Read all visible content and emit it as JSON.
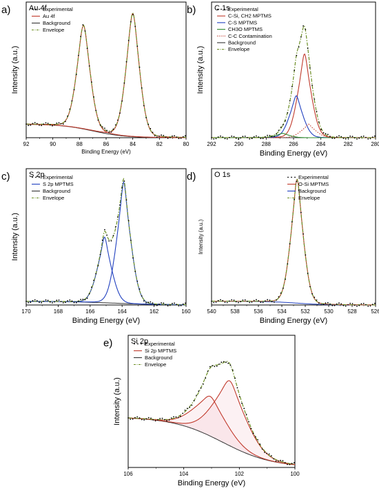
{
  "chart_data": [
    {
      "type": "line",
      "panel_label": "a)",
      "title": "Au 4f",
      "xlabel": "Binding Energy (eV)",
      "ylabel": "Intensity (a.u.)",
      "xlim": [
        92,
        80
      ],
      "xticks": [
        92,
        90,
        88,
        86,
        84,
        82,
        80
      ],
      "ylim": [
        0,
        1.1
      ],
      "legend": "top-left",
      "background": {
        "left": 0.11,
        "right": 0.0,
        "step_center": 87.0,
        "step_width": 1.2
      },
      "peaks": [
        {
          "name": "Au 4f",
          "center": 87.7,
          "sigma": 0.55,
          "gamma": 0.35,
          "amp": 0.84
        },
        {
          "name": "Au 4f",
          "center": 84.0,
          "sigma": 0.55,
          "gamma": 0.35,
          "amp": 1.0
        }
      ],
      "series": [
        {
          "name": "Experimental",
          "style": "dots",
          "color": "#000000"
        },
        {
          "name": "Au 4f",
          "style": "solid",
          "color": "#c0392b"
        },
        {
          "name": "Background",
          "style": "solid",
          "color": "#333333"
        },
        {
          "name": "Envelope",
          "style": "dashdot",
          "color": "#6b8e23"
        }
      ]
    },
    {
      "type": "line",
      "panel_label": "b)",
      "title": "C 1s",
      "xlabel": "Binding Energy (eV)",
      "ylabel": "Intensity (a.u.)",
      "xlim": [
        292,
        280
      ],
      "xticks": [
        292,
        290,
        288,
        286,
        284,
        282,
        280
      ],
      "ylim": [
        0,
        1.1
      ],
      "legend": "top-left",
      "background": {
        "left": 0.0,
        "right": 0.0,
        "step_center": 285.5,
        "step_width": 1.0
      },
      "peaks": [
        {
          "name": "C-Si, CH2 MPTMS",
          "center": 285.2,
          "sigma": 0.55,
          "gamma": 0.25,
          "amp": 0.68
        },
        {
          "name": "C-S MPTMS",
          "center": 285.8,
          "sigma": 0.55,
          "gamma": 0.25,
          "amp": 0.34
        },
        {
          "name": "CH3O MPTMS",
          "center": 286.8,
          "sigma": 0.55,
          "gamma": 0.25,
          "amp": 0.035
        },
        {
          "name": "C-C Contamination",
          "center": 284.9,
          "sigma": 0.6,
          "gamma": 0.2,
          "amp": 0.11
        }
      ],
      "series": [
        {
          "name": "Experimental",
          "style": "dots",
          "color": "#000000"
        },
        {
          "name": "C-Si, CH2 MPTMS",
          "style": "solid",
          "color": "#c0392b"
        },
        {
          "name": "C-S MPTMS",
          "style": "solid",
          "color": "#1f3fbf"
        },
        {
          "name": "CH3O MPTMS",
          "style": "solid",
          "color": "#2e8b2e"
        },
        {
          "name": "C-C Contamination",
          "style": "dotted",
          "color": "#c0392b"
        },
        {
          "name": "Background",
          "style": "solid",
          "color": "#333333"
        },
        {
          "name": "Envelope",
          "style": "dashdot",
          "color": "#6b8e23"
        }
      ]
    },
    {
      "type": "line",
      "panel_label": "c)",
      "title": "S 2p",
      "xlabel": "Binding Energy (eV)",
      "ylabel": "Intensity (a.u.)",
      "xlim": [
        170,
        160
      ],
      "xticks": [
        170,
        168,
        166,
        164,
        162,
        160
      ],
      "ylim": [
        0,
        1.1
      ],
      "legend": "top-left",
      "background": {
        "left": 0.03,
        "right": 0.0,
        "step_center": 164.5,
        "step_width": 1.5
      },
      "peaks": [
        {
          "name": "S 2p MPTMS",
          "center": 165.1,
          "sigma": 0.5,
          "gamma": 0.2,
          "amp": 0.53
        },
        {
          "name": "S 2p MPTMS",
          "center": 163.9,
          "sigma": 0.5,
          "gamma": 0.2,
          "amp": 0.98
        }
      ],
      "series": [
        {
          "name": "Experimental",
          "style": "dots",
          "color": "#000000"
        },
        {
          "name": "S 2p MPTMS",
          "style": "solid",
          "color": "#1f3fbf"
        },
        {
          "name": "Background",
          "style": "solid",
          "color": "#333333"
        },
        {
          "name": "Envelope",
          "style": "dashdot",
          "color": "#6b8e23"
        }
      ]
    },
    {
      "type": "line",
      "panel_label": "d)",
      "title": "O 1s",
      "xlabel": "Binding Energy (eV)",
      "ylabel": "Intensity (a.u.)",
      "xlim": [
        540,
        526
      ],
      "xticks": [
        540,
        538,
        536,
        534,
        532,
        530,
        528,
        526
      ],
      "ylim": [
        0,
        1.1
      ],
      "legend": "top-right",
      "background": {
        "left": 0.03,
        "right": 0.0,
        "step_center": 532.7,
        "step_width": 1.2
      },
      "peaks": [
        {
          "name": "O-Si MPTMS",
          "center": 532.7,
          "sigma": 0.6,
          "gamma": 0.3,
          "amp": 1.0
        }
      ],
      "series": [
        {
          "name": "Experimental",
          "style": "dots",
          "color": "#000000"
        },
        {
          "name": "O-Si MPTMS",
          "style": "solid",
          "color": "#c0392b"
        },
        {
          "name": "Background",
          "style": "solid",
          "color": "#1f3fbf"
        },
        {
          "name": "Envelope",
          "style": "dashdot",
          "color": "#6b8e23"
        }
      ]
    },
    {
      "type": "line",
      "panel_label": "e)",
      "title": "Si 2p",
      "xlabel": "Binding Energy (eV)",
      "ylabel": "Intensity (a.u.)",
      "xlim": [
        106,
        100
      ],
      "xticks": [
        106,
        104,
        102,
        100
      ],
      "ylim": [
        0,
        1.1
      ],
      "legend": "top-left",
      "background": {
        "left": 0.42,
        "right": 0.0,
        "step_center": 102.6,
        "step_width": 0.9
      },
      "peaks": [
        {
          "name": "Si 2p MPTMS",
          "center": 103.05,
          "sigma": 0.65,
          "gamma": 0.3,
          "amp": 0.33
        },
        {
          "name": "Si 2p MPTMS",
          "center": 102.35,
          "sigma": 0.65,
          "gamma": 0.3,
          "amp": 0.54
        }
      ],
      "series": [
        {
          "name": "Experimental",
          "style": "dots",
          "color": "#000000"
        },
        {
          "name": "Si 2p MPTMS",
          "style": "solid",
          "color": "#c0392b"
        },
        {
          "name": "Background",
          "style": "solid",
          "color": "#333333"
        },
        {
          "name": "Envelope",
          "style": "dashdot",
          "color": "#6b8e23"
        }
      ]
    }
  ]
}
